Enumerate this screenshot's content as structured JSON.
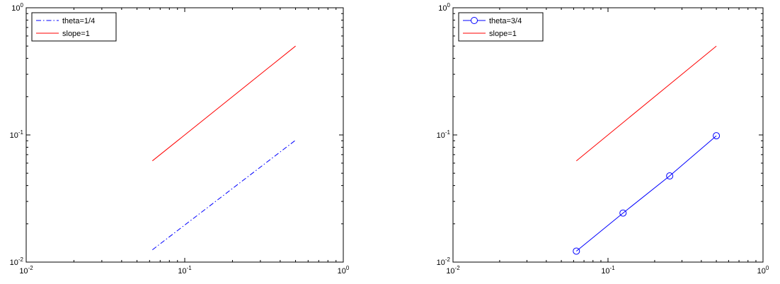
{
  "chart_data": [
    {
      "type": "line",
      "xscale": "log",
      "yscale": "log",
      "xlim": [
        0.01,
        1
      ],
      "ylim": [
        0.01,
        1
      ],
      "x_ticks": [
        0.01,
        0.1,
        1
      ],
      "y_ticks": [
        0.01,
        0.1,
        1
      ],
      "grid": false,
      "legend_position": "top-left",
      "series": [
        {
          "name": "theta=1/4",
          "x": [
            0.0625,
            0.5
          ],
          "y": [
            0.0125,
            0.091
          ],
          "color": "#0000ff",
          "line_style": "dash-dot",
          "marker": "none"
        },
        {
          "name": "slope=1",
          "x": [
            0.0625,
            0.5
          ],
          "y": [
            0.0625,
            0.5
          ],
          "color": "#ff0000",
          "line_style": "solid",
          "marker": "none"
        }
      ]
    },
    {
      "type": "line",
      "xscale": "log",
      "yscale": "log",
      "xlim": [
        0.01,
        1
      ],
      "ylim": [
        0.01,
        1
      ],
      "x_ticks": [
        0.01,
        0.1,
        1
      ],
      "y_ticks": [
        0.01,
        0.1,
        1
      ],
      "grid": false,
      "legend_position": "top-left",
      "series": [
        {
          "name": "theta=3/4",
          "x": [
            0.0625,
            0.125,
            0.25,
            0.5
          ],
          "y": [
            0.0122,
            0.0243,
            0.0476,
            0.0985
          ],
          "color": "#0000ff",
          "line_style": "solid",
          "marker": "circle"
        },
        {
          "name": "slope=1",
          "x": [
            0.0625,
            0.5
          ],
          "y": [
            0.0625,
            0.5
          ],
          "color": "#ff0000",
          "line_style": "solid",
          "marker": "none"
        }
      ]
    }
  ]
}
